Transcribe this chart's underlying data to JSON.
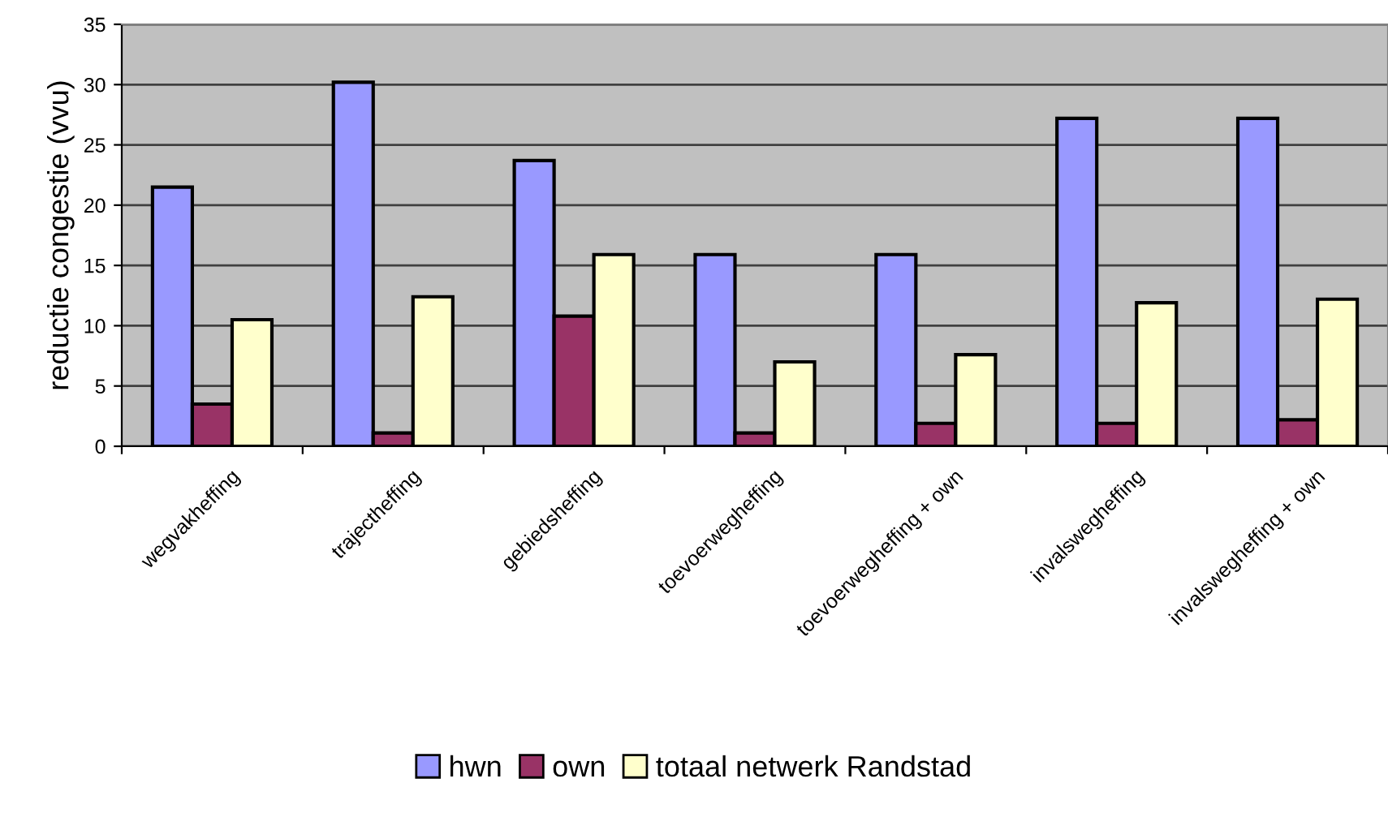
{
  "chart_data": {
    "type": "bar",
    "ylabel": "reductie congestie (vvu)",
    "categories": [
      "wegvakheffing",
      "trajectheffing",
      "gebiedsheffing",
      "toevoerwegheffing",
      "toevoerwegheffing + own",
      "invalswegheffing",
      "invalswegheffing + own"
    ],
    "series": [
      {
        "name": "hwn",
        "color": "#9999ff",
        "values": [
          21.5,
          30.2,
          23.7,
          15.9,
          15.9,
          27.2,
          27.2
        ]
      },
      {
        "name": "own",
        "color": "#993366",
        "values": [
          3.5,
          1.1,
          10.8,
          1.1,
          1.9,
          1.9,
          2.2
        ]
      },
      {
        "name": "totaal netwerk Randstad",
        "color": "#ffffcc",
        "values": [
          10.5,
          12.4,
          15.9,
          7.0,
          7.6,
          11.9,
          12.2
        ]
      }
    ],
    "ylim": [
      0,
      35
    ],
    "yticks": [
      0,
      5,
      10,
      15,
      20,
      25,
      30,
      35
    ],
    "grid": "y",
    "legend": "bottom"
  }
}
